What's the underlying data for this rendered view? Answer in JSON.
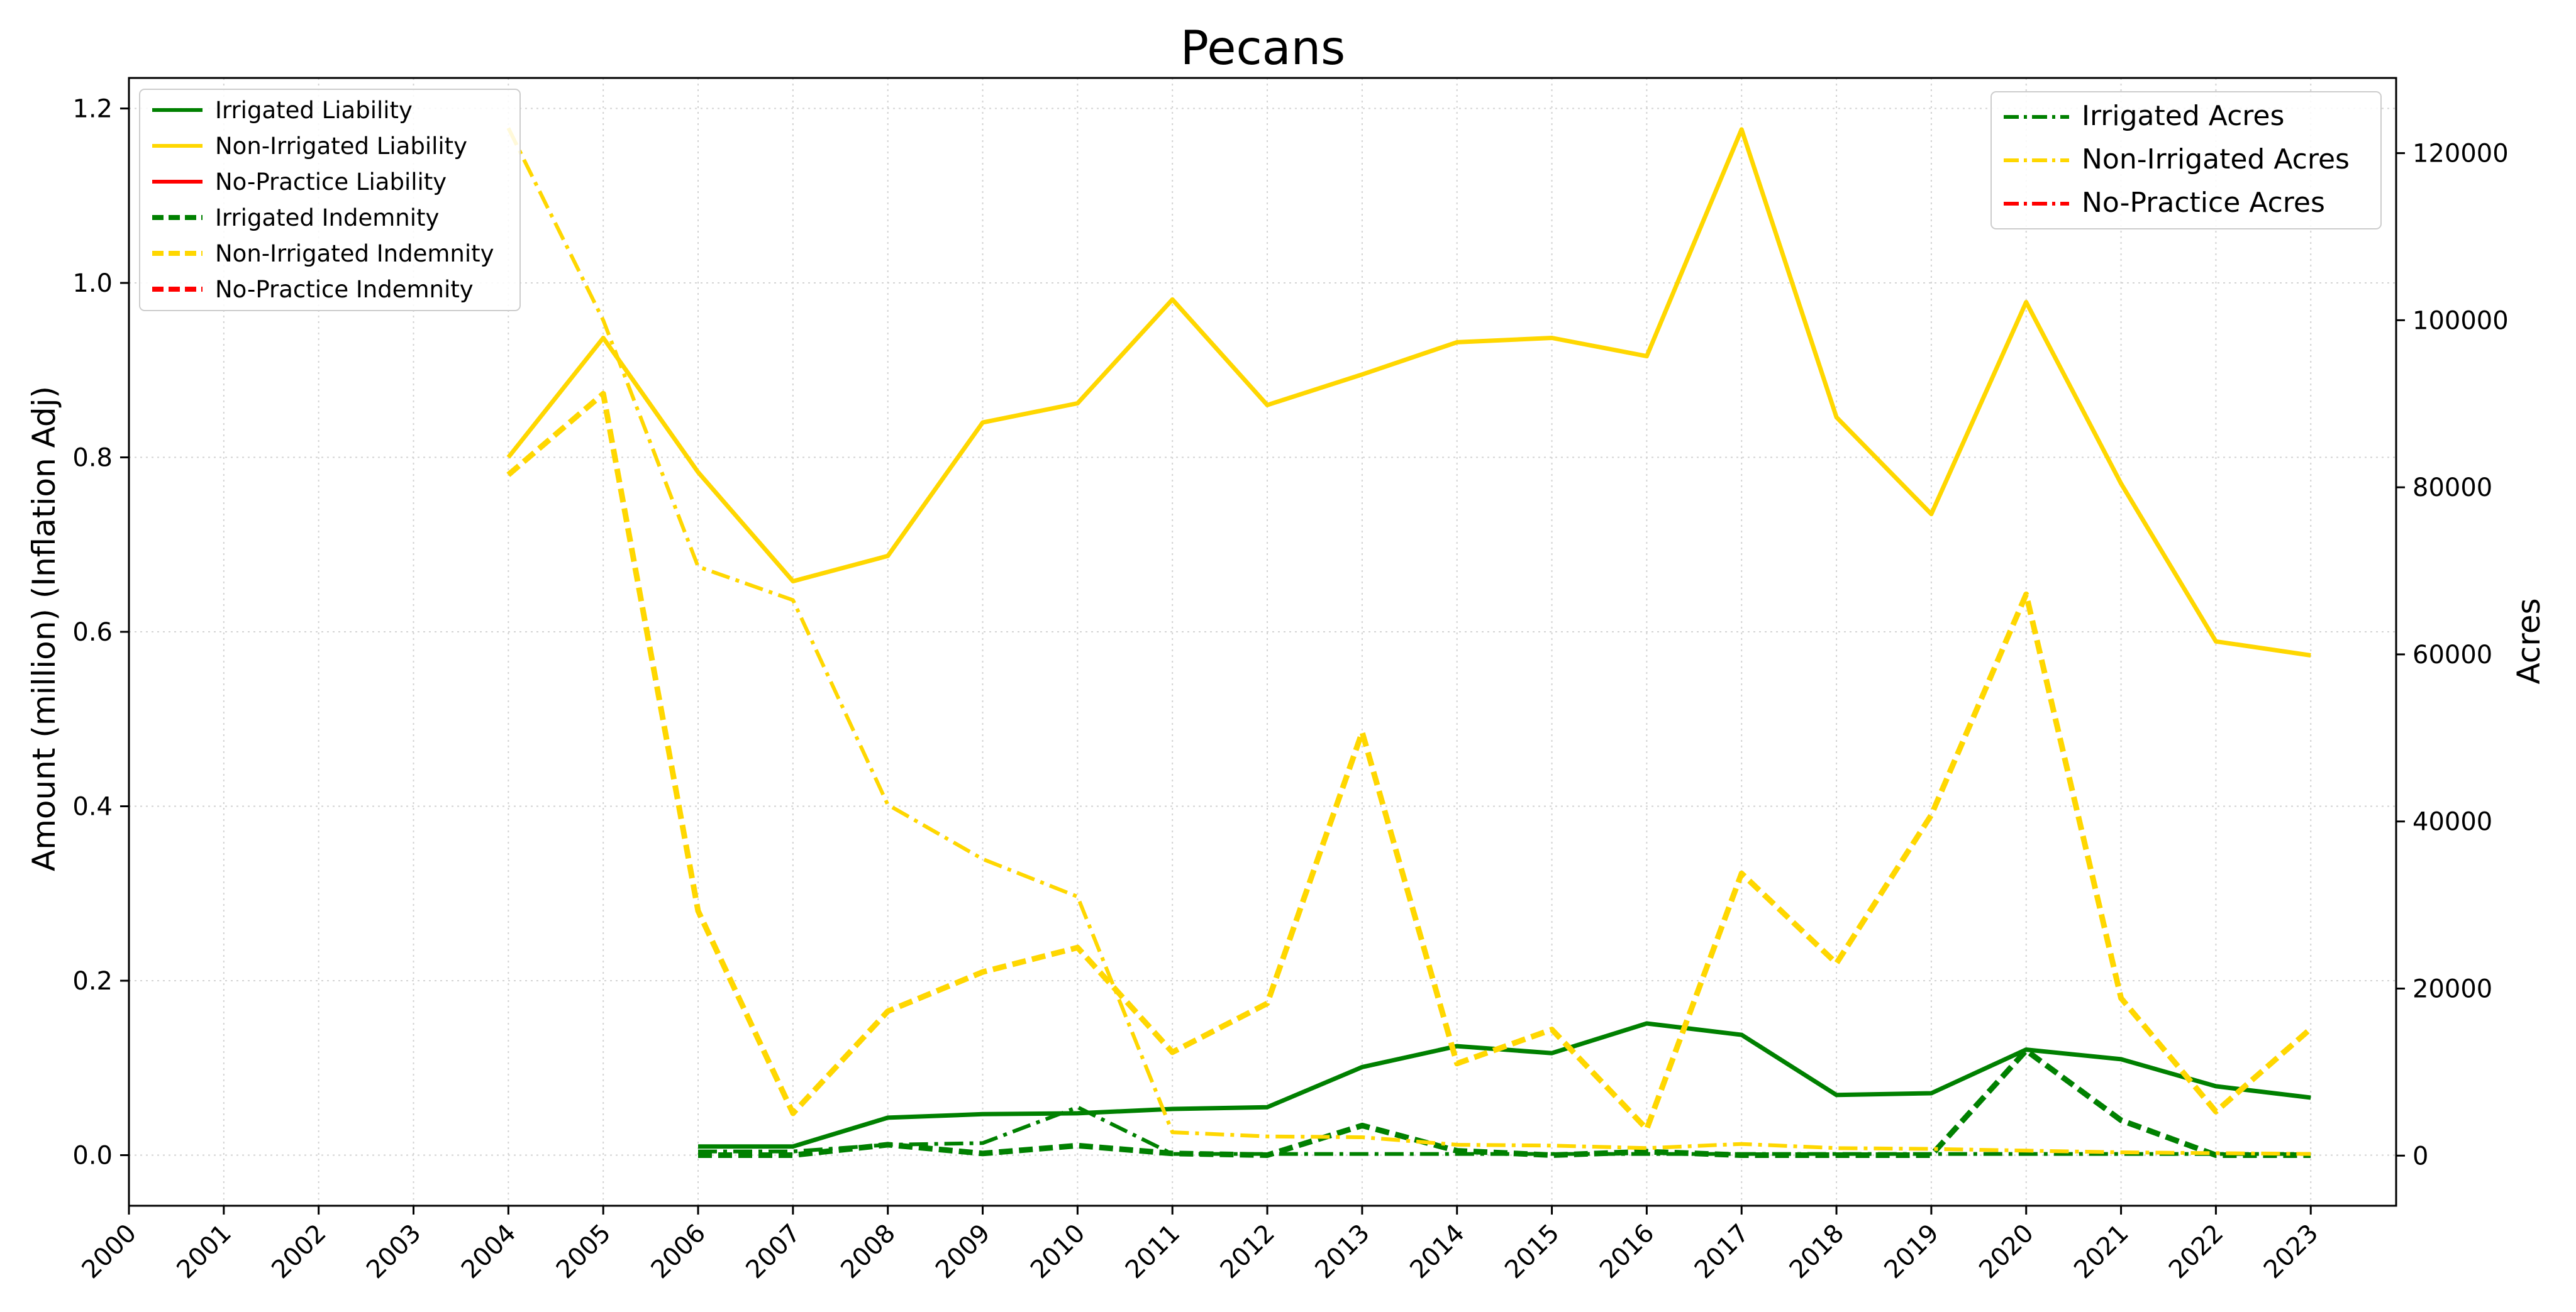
{
  "chart_data": {
    "type": "line",
    "title": "Pecans",
    "ylabel": "Amount (million) (Inflation Adj)",
    "y2label": "Acres",
    "x": [
      2000,
      2001,
      2002,
      2003,
      2004,
      2005,
      2006,
      2007,
      2008,
      2009,
      2010,
      2011,
      2012,
      2013,
      2014,
      2015,
      2016,
      2017,
      2018,
      2019,
      2020,
      2021,
      2022,
      2023
    ],
    "xticks": [
      "2000",
      "2001",
      "2002",
      "2003",
      "2004",
      "2005",
      "2006",
      "2007",
      "2008",
      "2009",
      "2010",
      "2011",
      "2012",
      "2013",
      "2014",
      "2015",
      "2016",
      "2017",
      "2018",
      "2019",
      "2020",
      "2021",
      "2022",
      "2023"
    ],
    "xlim": [
      2000,
      2023.9
    ],
    "ylim": [
      -0.058,
      1.235
    ],
    "yticks": [
      "0.0",
      "0.2",
      "0.4",
      "0.6",
      "0.8",
      "1.0",
      "1.2"
    ],
    "y2lim": [
      -6000,
      129000
    ],
    "y2ticks": [
      "0",
      "20000",
      "40000",
      "60000",
      "80000",
      "100000",
      "120000"
    ],
    "grid": true,
    "legend_left_placement": "top-left",
    "legend_right_placement": "top-right",
    "colors": {
      "irrigated": "#008000",
      "non_irrigated": "#FFD700",
      "no_practice": "#FF0000"
    },
    "series": [
      {
        "name": "Irrigated Liability",
        "axis": "left",
        "group": "irrigated",
        "style": "solid",
        "x": [
          2006,
          2007,
          2008,
          2009,
          2010,
          2011,
          2012,
          2013,
          2014,
          2015,
          2016,
          2017,
          2018,
          2019,
          2020,
          2021,
          2022,
          2023
        ],
        "values": [
          0.01,
          0.01,
          0.043,
          0.047,
          0.048,
          0.053,
          0.055,
          0.101,
          0.125,
          0.117,
          0.151,
          0.138,
          0.069,
          0.071,
          0.121,
          0.11,
          0.079,
          0.066
        ]
      },
      {
        "name": "Non-Irrigated Liability",
        "axis": "left",
        "group": "non_irrigated",
        "style": "solid",
        "x": [
          2004,
          2005,
          2006,
          2007,
          2008,
          2009,
          2010,
          2011,
          2012,
          2013,
          2014,
          2015,
          2016,
          2017,
          2018,
          2019,
          2020,
          2021,
          2022,
          2023
        ],
        "values": [
          0.8,
          0.937,
          0.783,
          0.658,
          0.687,
          0.84,
          0.862,
          0.981,
          0.86,
          0.895,
          0.932,
          0.937,
          0.916,
          1.176,
          0.846,
          0.735,
          0.978,
          0.77,
          0.589,
          0.573
        ]
      },
      {
        "name": "No-Practice Liability",
        "axis": "left",
        "group": "no_practice",
        "style": "solid",
        "x": [],
        "values": []
      },
      {
        "name": "Irrigated Indemnity",
        "axis": "left",
        "group": "irrigated",
        "style": "dashed",
        "x": [
          2006,
          2007,
          2008,
          2009,
          2010,
          2011,
          2012,
          2013,
          2014,
          2015,
          2016,
          2017,
          2018,
          2019,
          2020,
          2021,
          2022,
          2023
        ],
        "values": [
          0.0,
          0.0,
          0.012,
          0.002,
          0.011,
          0.002,
          0.0,
          0.034,
          0.005,
          0.0,
          0.004,
          0.0,
          0.0,
          0.0,
          0.12,
          0.04,
          0.0,
          0.0
        ]
      },
      {
        "name": "Non-Irrigated Indemnity",
        "axis": "left",
        "group": "non_irrigated",
        "style": "dashed",
        "x": [
          2004,
          2005,
          2006,
          2007,
          2008,
          2009,
          2010,
          2011,
          2012,
          2013,
          2014,
          2015,
          2016,
          2017,
          2018,
          2019,
          2020,
          2021,
          2022,
          2023
        ],
        "values": [
          0.78,
          0.873,
          0.28,
          0.048,
          0.165,
          0.21,
          0.238,
          0.118,
          0.174,
          0.485,
          0.105,
          0.144,
          0.03,
          0.323,
          0.22,
          0.39,
          0.643,
          0.18,
          0.05,
          0.145
        ]
      },
      {
        "name": "No-Practice Indemnity",
        "axis": "left",
        "group": "no_practice",
        "style": "dashed",
        "x": [],
        "values": []
      },
      {
        "name": "Irrigated Acres",
        "axis": "right",
        "group": "irrigated",
        "style": "dashdot",
        "x": [
          2006,
          2007,
          2008,
          2009,
          2010,
          2011,
          2012,
          2013,
          2014,
          2015,
          2016,
          2017,
          2018,
          2019,
          2020,
          2021,
          2022,
          2023
        ],
        "values": [
          500,
          500,
          1300,
          1500,
          5800,
          200,
          200,
          200,
          200,
          200,
          200,
          200,
          200,
          200,
          200,
          200,
          200,
          200
        ]
      },
      {
        "name": "Non-Irrigated Acres",
        "axis": "right",
        "group": "non_irrigated",
        "style": "dashdot",
        "x": [
          2004,
          2005,
          2006,
          2007,
          2008,
          2009,
          2010,
          2011,
          2012,
          2013,
          2014,
          2015,
          2016,
          2017,
          2018,
          2019,
          2020,
          2021,
          2022,
          2023
        ],
        "values": [
          123000,
          100000,
          70500,
          66500,
          42000,
          35500,
          31000,
          2800,
          2300,
          2200,
          1300,
          1200,
          900,
          1400,
          900,
          800,
          600,
          400,
          300,
          200
        ]
      },
      {
        "name": "No-Practice Acres",
        "axis": "right",
        "group": "no_practice",
        "style": "dashdot",
        "x": [],
        "values": []
      }
    ]
  }
}
